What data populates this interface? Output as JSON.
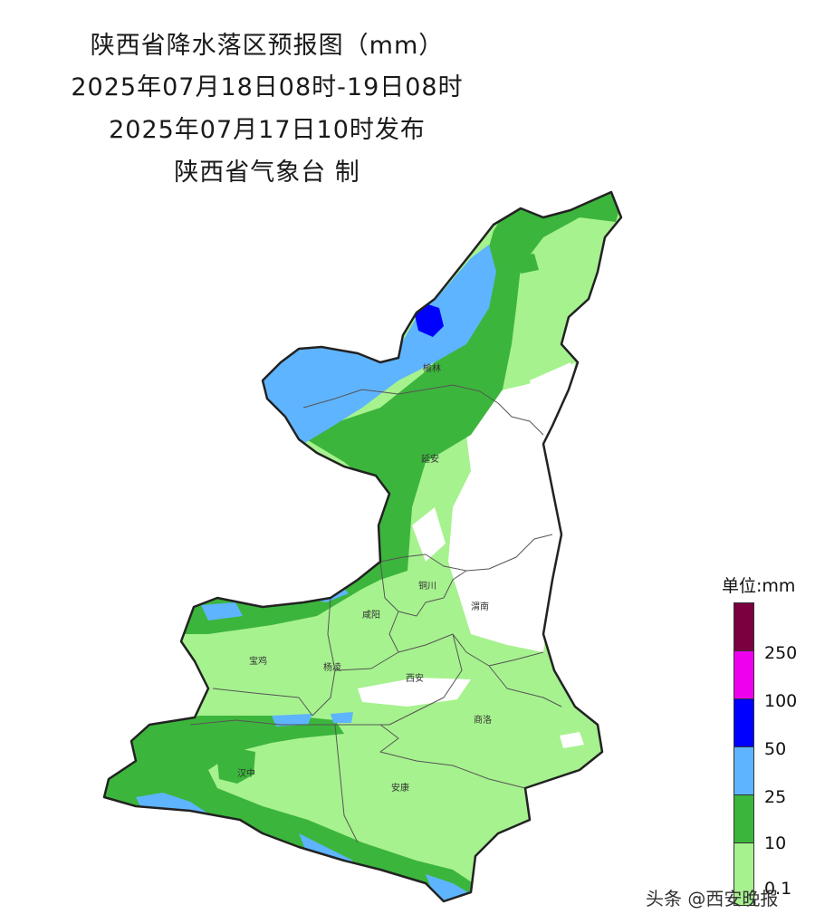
{
  "header": {
    "title": "陕西省降水落区预报图（mm）",
    "period": "2025年07月18日08时-19日08时",
    "issued": "2025年07月17日10时发布",
    "issuer": "陕西省气象台 制"
  },
  "map": {
    "cities": [
      "榆林",
      "延安",
      "铜川",
      "渭南",
      "咸阳",
      "宝鸡",
      "杨凌",
      "西安",
      "商洛",
      "汉中",
      "安康"
    ]
  },
  "legend": {
    "title": "单位:mm",
    "levels": [
      {
        "label": "250",
        "color": "#7a0040"
      },
      {
        "label": "100",
        "color": "#ee00ee"
      },
      {
        "label": "50",
        "color": "#0000ff"
      },
      {
        "label": "25",
        "color": "#5fb4ff"
      },
      {
        "label": "10",
        "color": "#3cb53c"
      },
      {
        "label": "0.1",
        "color": "#a6f28e"
      }
    ]
  },
  "watermark": "头条 @西安晚报"
}
